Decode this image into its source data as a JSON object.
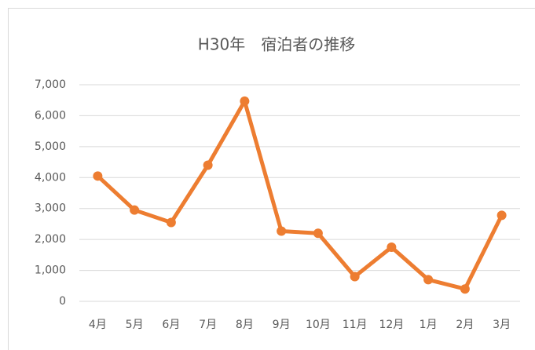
{
  "chart_data": {
    "type": "line",
    "title": "H30年　宿泊者の推移",
    "categories": [
      "4月",
      "5月",
      "6月",
      "7月",
      "8月",
      "9月",
      "10月",
      "11月",
      "12月",
      "1月",
      "2月",
      "3月"
    ],
    "series": [
      {
        "name": "宿泊者",
        "color": "#ed7d31",
        "values": [
          4050,
          2950,
          2550,
          4400,
          6470,
          2270,
          2200,
          800,
          1750,
          700,
          400,
          2780
        ]
      }
    ],
    "ylim": [
      0,
      7000
    ],
    "yticks": [
      0,
      {
        "value": 1000,
        "label": "1,000"
      },
      {
        "value": 2000,
        "label": "2,000"
      },
      {
        "value": 3000,
        "label": "3,000"
      },
      {
        "value": 4000,
        "label": "4,000"
      },
      {
        "value": 5000,
        "label": "5,000"
      },
      {
        "value": 6000,
        "label": "6,000"
      },
      {
        "value": 7000,
        "label": "7,000"
      }
    ],
    "grid": true
  }
}
